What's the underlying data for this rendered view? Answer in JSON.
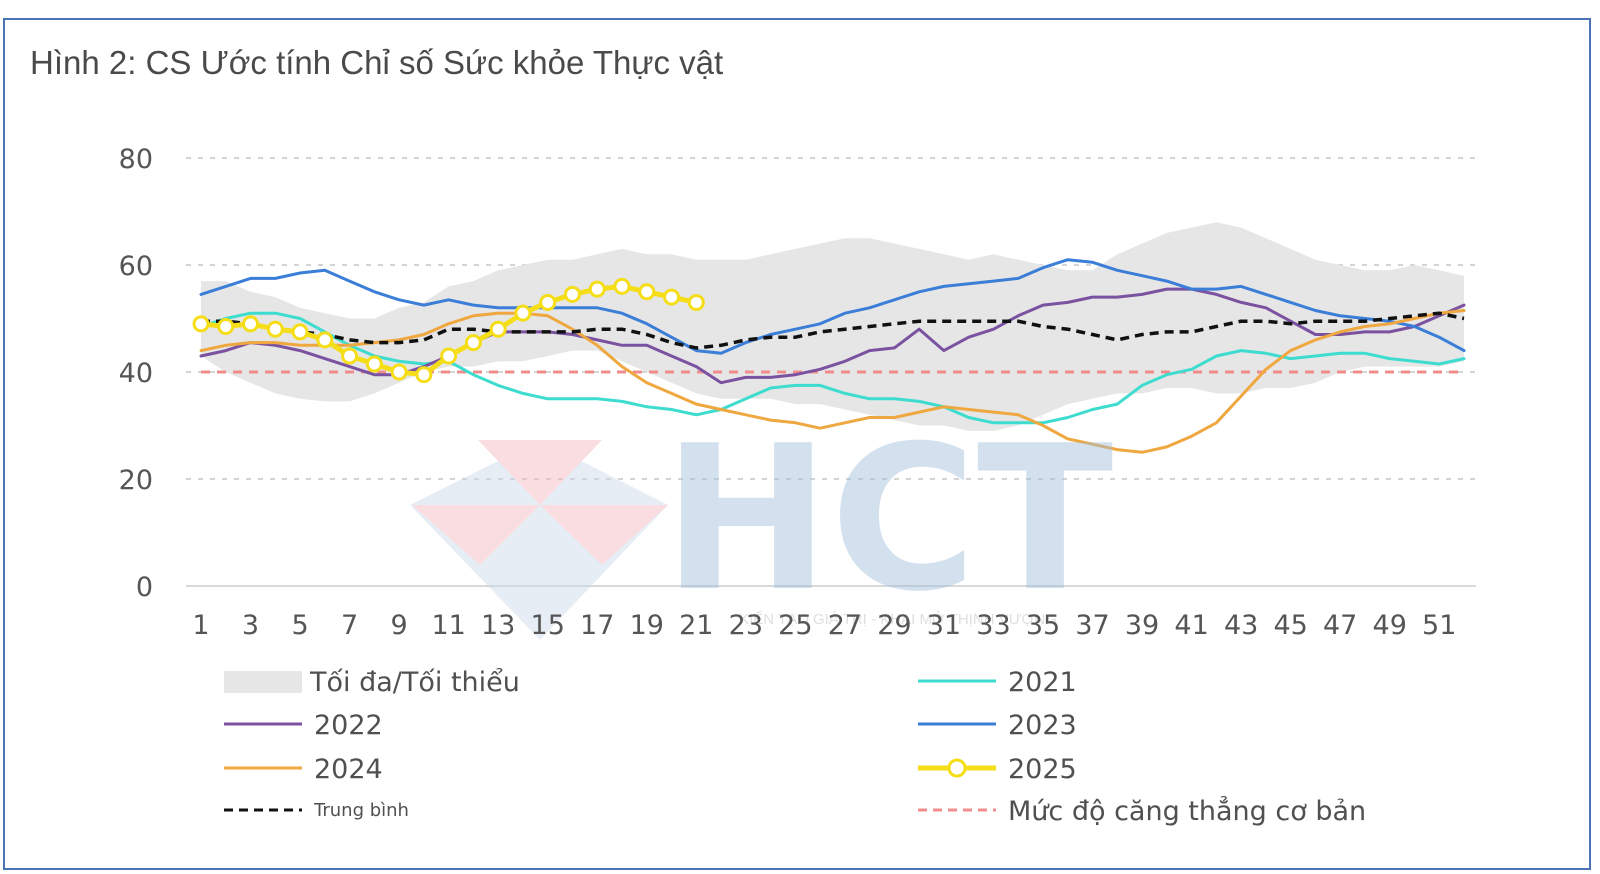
{
  "chart_data": {
    "type": "line",
    "title": "Hình 2: CS Ước tính Chỉ số Sức khỏe Thực vật",
    "xlabel": "",
    "ylabel": "",
    "xlim": [
      1,
      52
    ],
    "ylim": [
      0,
      80
    ],
    "y_ticks": [
      0,
      20,
      40,
      60,
      80
    ],
    "x_ticks": [
      1,
      3,
      5,
      7,
      9,
      11,
      13,
      15,
      17,
      19,
      21,
      23,
      25,
      27,
      29,
      31,
      33,
      35,
      37,
      39,
      41,
      43,
      45,
      47,
      49,
      51
    ],
    "grid": "horizontal dashed",
    "legend_position": "bottom",
    "band": {
      "name": "Tối đa/Tối thiểu",
      "color": "#e6e6e6",
      "upper": [
        57,
        57,
        55,
        54,
        52,
        51,
        50,
        50,
        52,
        53,
        56,
        57,
        59,
        60,
        61,
        61,
        62,
        63,
        62,
        62,
        61,
        61,
        61,
        62,
        63,
        64,
        65,
        65,
        64,
        63,
        62,
        61,
        62,
        61,
        60,
        59,
        59,
        62,
        64,
        66,
        67,
        68,
        67,
        65,
        63,
        61,
        60,
        59,
        59,
        60,
        59,
        58
      ],
      "lower": [
        43,
        40,
        38,
        36,
        35,
        34.5,
        34.5,
        36,
        38,
        40,
        41,
        41,
        42,
        42,
        43,
        44,
        44,
        42,
        40,
        38,
        36,
        35,
        35,
        35,
        34,
        34,
        33,
        32,
        31,
        30,
        30,
        29,
        29,
        30,
        32,
        34,
        35,
        36,
        36,
        37,
        37,
        36,
        36,
        37,
        37,
        38,
        40,
        41,
        41,
        41,
        41,
        42
      ]
    },
    "series": [
      {
        "name": "2021",
        "color": "#3ddccf",
        "values": [
          48.5,
          50,
          51,
          51,
          50,
          47.5,
          45,
          43,
          42,
          41.5,
          42,
          39.5,
          37.5,
          36,
          35,
          35,
          35,
          34.5,
          33.5,
          33,
          32,
          33,
          35,
          37,
          37.5,
          37.5,
          36,
          35,
          35,
          34.5,
          33.5,
          31.5,
          30.5,
          30.5,
          30.5,
          31.5,
          33,
          34,
          37.5,
          39.5,
          40.5,
          43,
          44,
          43.5,
          42.5,
          43,
          43.5,
          43.5,
          42.5,
          42,
          41.5,
          42.5
        ]
      },
      {
        "name": "2022",
        "color": "#7a52a0",
        "values": [
          43,
          44,
          45.5,
          45,
          44,
          42.5,
          41,
          39.5,
          39.5,
          41,
          43,
          45.5,
          47.5,
          47.5,
          47.5,
          47,
          46,
          45,
          45,
          43,
          41,
          38,
          39,
          39,
          39.5,
          40.5,
          42,
          44,
          44.5,
          48,
          44,
          46.5,
          48,
          50.5,
          52.5,
          53,
          54,
          54,
          54.5,
          55.5,
          55.5,
          54.5,
          53,
          52,
          49.5,
          47,
          47,
          47.5,
          47.5,
          48.5,
          50.5,
          52.5
        ]
      },
      {
        "name": "2023",
        "color": "#3b7ed8",
        "values": [
          54.5,
          56,
          57.5,
          57.5,
          58.5,
          59,
          57,
          55,
          53.5,
          52.5,
          53.5,
          52.5,
          52,
          52,
          52,
          52,
          52,
          51,
          49,
          46.5,
          44,
          43.5,
          45.5,
          47,
          48,
          49,
          51,
          52,
          53.5,
          55,
          56,
          56.5,
          57,
          57.5,
          59.5,
          61,
          60.5,
          59,
          58,
          57,
          55.5,
          55.5,
          56,
          54.5,
          53,
          51.5,
          50.5,
          50,
          49.5,
          48.5,
          46.5,
          44
        ]
      },
      {
        "name": "2024",
        "color": "#efa73f",
        "values": [
          44,
          45,
          45.5,
          45.5,
          45,
          45,
          45,
          45.5,
          46,
          47,
          49,
          50.5,
          51,
          51,
          50.5,
          48,
          45,
          41,
          38,
          36,
          34,
          33,
          32,
          31,
          30.5,
          29.5,
          30.5,
          31.5,
          31.5,
          32.5,
          33.5,
          33,
          32.5,
          32,
          30,
          27.5,
          26.5,
          25.5,
          25,
          26,
          28,
          30.5,
          35.5,
          40.5,
          44,
          46,
          47.5,
          48.5,
          49,
          50,
          51,
          51.5
        ]
      },
      {
        "name": "2025",
        "color": "#f5dd17",
        "markers": true,
        "values": [
          49,
          48.5,
          49,
          48,
          47.5,
          46,
          43,
          41.5,
          40,
          39.5,
          43,
          45.5,
          48,
          51,
          53,
          54.5,
          55.5,
          56,
          55,
          54,
          53
        ]
      },
      {
        "name": "Trung bình",
        "color": "#111111",
        "dash": "dashed",
        "values": [
          49.5,
          49.5,
          49,
          48,
          47.5,
          47,
          46,
          45.5,
          45.5,
          46,
          48,
          48,
          47.5,
          47.5,
          47.5,
          47.5,
          48,
          48,
          47,
          45.5,
          44.5,
          45,
          46,
          46.5,
          46.5,
          47.5,
          48,
          48.5,
          49,
          49.5,
          49.5,
          49.5,
          49.5,
          49.5,
          48.5,
          48,
          47,
          46,
          47,
          47.5,
          47.5,
          48.5,
          49.5,
          49.5,
          49,
          49.5,
          49.5,
          49.5,
          50,
          50.5,
          51,
          50
        ]
      },
      {
        "name": "Mức độ căng thẳng cơ bản",
        "color": "#f08c8c",
        "dash": "dashed",
        "values": [
          40,
          40,
          40,
          40,
          40,
          40,
          40,
          40,
          40,
          40,
          40,
          40,
          40,
          40,
          40,
          40,
          40,
          40,
          40,
          40,
          40,
          40,
          40,
          40,
          40,
          40,
          40,
          40,
          40,
          40,
          40,
          40,
          40,
          40,
          40,
          40,
          40,
          40,
          40,
          40,
          40,
          40,
          40,
          40,
          40,
          40,
          40,
          40,
          40,
          40,
          40,
          40
        ]
      }
    ]
  },
  "watermark": {
    "logo_text": "HCT",
    "tagline": "KIẾN TẠO GIÁ TRỊ - KHAI MỞ THỊNH VƯỢNG"
  }
}
